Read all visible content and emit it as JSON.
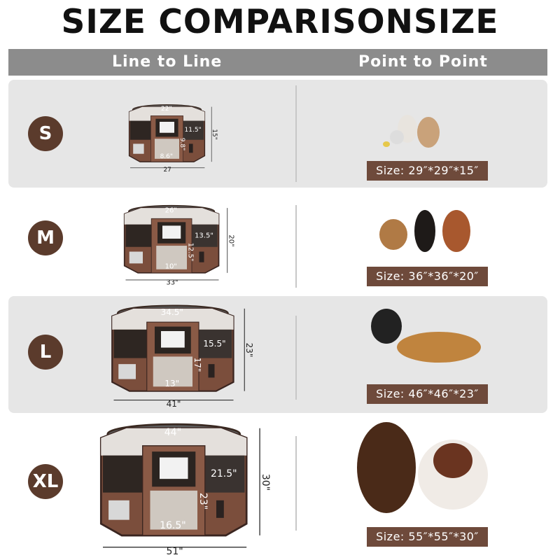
{
  "title": "SIZE COMPARISONSIZE",
  "header": {
    "left": "Line to Line",
    "right": "Point to Point"
  },
  "colors": {
    "header": "#8c8c8c",
    "accent_brown": "#5b3b2c",
    "size_label": "#6e4a3b",
    "row_gray": "#e6e6e6"
  },
  "rows": [
    {
      "size": "S",
      "top": "22\"",
      "side": "11.5\"",
      "height": "15\"",
      "door": "9.8\"",
      "bottom": "8.6\"",
      "width": "27",
      "label": "Size: 29″*29″*15″"
    },
    {
      "size": "M",
      "top": "26\"",
      "side": "13.5\"",
      "height": "20\"",
      "door": "12.5\"",
      "bottom": "10\"",
      "width": "33\"",
      "label": "Size: 36″*36″*20″"
    },
    {
      "size": "L",
      "top": "34.5\"",
      "side": "15.5\"",
      "height": "23\"",
      "door": "17\"",
      "bottom": "13\"",
      "width": "41\"",
      "label": "Size: 46″*46″*23″"
    },
    {
      "size": "XL",
      "top": "44\"",
      "side": "21.5\"",
      "height": "30\"",
      "door": "23\"",
      "bottom": "16.5\"",
      "width": "51\"",
      "label": "Size: 55″*55″*30″"
    }
  ]
}
